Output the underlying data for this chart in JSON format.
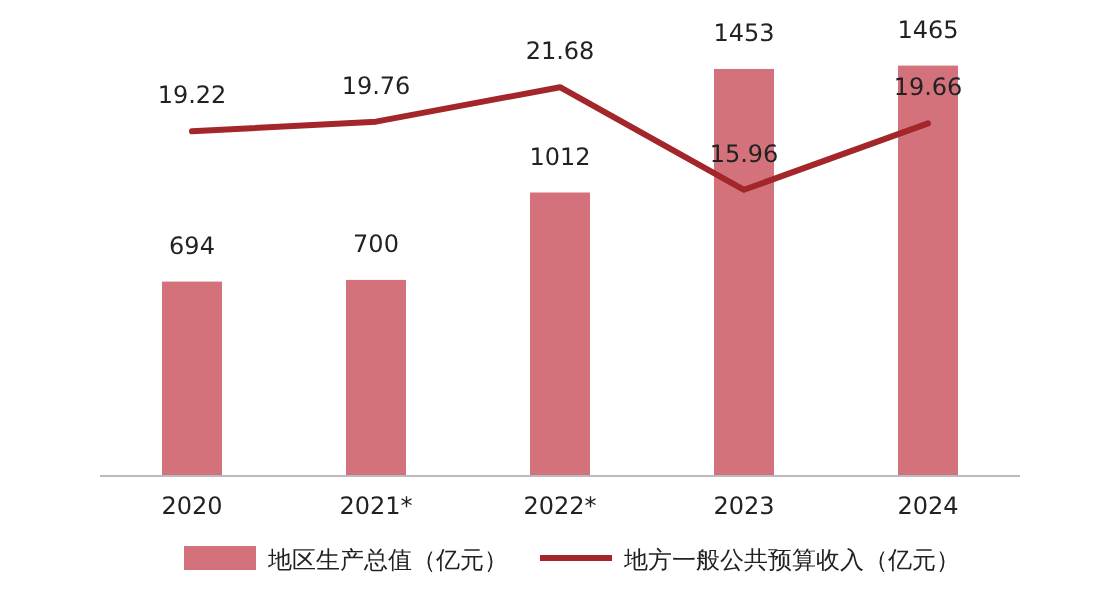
{
  "chart_data": {
    "type": "bar",
    "categories": [
      "2020",
      "2021*",
      "2022*",
      "2023",
      "2024"
    ],
    "series": [
      {
        "name": "地区生产总值（亿元）",
        "color": "#d4727c",
        "values": [
          694,
          700,
          1012,
          1453,
          1465
        ]
      },
      {
        "name": "地方一般公共预算收入（亿元）",
        "type": "line",
        "axis": "y2",
        "color": "#a3262a",
        "values": [
          19.22,
          19.76,
          21.68,
          15.96,
          19.66
        ]
      }
    ],
    "data_labels": true,
    "legend": "bottom",
    "grid": false,
    "marker": "none",
    "line_style": "solid"
  }
}
